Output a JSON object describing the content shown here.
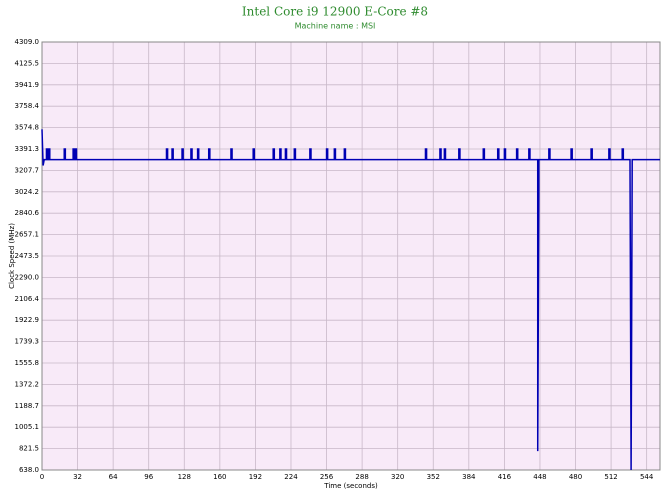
{
  "chart_data": {
    "type": "line",
    "title": "Intel Core i9 12900 E-Core #8",
    "subtitle": "Machine name : MSI",
    "xlabel": "Time (seconds)",
    "ylabel": "Clock Speed (MHz)",
    "color": "#0000b4",
    "grid": true,
    "xlim": [
      0,
      556
    ],
    "ylim": [
      638,
      4309
    ],
    "xticks": [
      0,
      32,
      64,
      96,
      128,
      160,
      192,
      224,
      256,
      288,
      320,
      352,
      384,
      416,
      448,
      480,
      512,
      544
    ],
    "yticks": [
      {
        "value": 638,
        "label": "638.0"
      },
      821.5,
      1005.1,
      1188.7,
      1372.2,
      1555.8,
      1739.3,
      1922.9,
      2106.4,
      {
        "value": 2290,
        "label": "2290.0"
      },
      2473.5,
      2657.1,
      2840.6,
      3024.2,
      3207.7,
      3391.3,
      3574.8,
      3758.4,
      3941.9,
      4125.5,
      {
        "value": 4309,
        "label": "4309.0"
      }
    ],
    "x": [
      0,
      1,
      2,
      4,
      4,
      5,
      5,
      6,
      6,
      7,
      7,
      20,
      20,
      21,
      21,
      28,
      28,
      29,
      29,
      30,
      30,
      31,
      31,
      112,
      112,
      113,
      113,
      117,
      117,
      118,
      118,
      126,
      126,
      127,
      127,
      134,
      134,
      135,
      135,
      140,
      140,
      141,
      141,
      150,
      150,
      151,
      151,
      170,
      170,
      171,
      171,
      190,
      190,
      191,
      191,
      208,
      208,
      209,
      209,
      214,
      214,
      215,
      215,
      219,
      219,
      220,
      220,
      227,
      227,
      228,
      228,
      241,
      241,
      242,
      242,
      256,
      256,
      257,
      257,
      263,
      263,
      264,
      264,
      272,
      272,
      273,
      273,
      345,
      345,
      346,
      346,
      358,
      358,
      359,
      359,
      362,
      362,
      363,
      363,
      375,
      375,
      376,
      376,
      397,
      397,
      398,
      398,
      410,
      410,
      411,
      411,
      416,
      416,
      417,
      417,
      427,
      427,
      428,
      428,
      438,
      438,
      439,
      439,
      446,
      446,
      447,
      447,
      456,
      456,
      457,
      457,
      476,
      476,
      477,
      477,
      494,
      494,
      495,
      495,
      510,
      510,
      511,
      511,
      522,
      522,
      523,
      523,
      529,
      530,
      530.5,
      531,
      556
    ],
    "values": [
      3560,
      3250,
      3300,
      3300,
      3391,
      3391,
      3300,
      3300,
      3391,
      3391,
      3300,
      3300,
      3391,
      3391,
      3300,
      3300,
      3391,
      3391,
      3300,
      3300,
      3391,
      3391,
      3300,
      3300,
      3391,
      3391,
      3300,
      3300,
      3391,
      3391,
      3300,
      3300,
      3391,
      3391,
      3300,
      3300,
      3391,
      3391,
      3300,
      3300,
      3391,
      3391,
      3300,
      3300,
      3391,
      3391,
      3300,
      3300,
      3391,
      3391,
      3300,
      3300,
      3391,
      3391,
      3300,
      3300,
      3391,
      3391,
      3300,
      3300,
      3391,
      3391,
      3300,
      3300,
      3391,
      3391,
      3300,
      3300,
      3391,
      3391,
      3300,
      3300,
      3391,
      3391,
      3300,
      3300,
      3391,
      3391,
      3300,
      3300,
      3391,
      3391,
      3300,
      3300,
      3391,
      3391,
      3300,
      3300,
      3391,
      3391,
      3300,
      3300,
      3391,
      3391,
      3300,
      3300,
      3391,
      3391,
      3300,
      3300,
      3391,
      3391,
      3300,
      3300,
      3391,
      3391,
      3300,
      3300,
      3391,
      3391,
      3300,
      3300,
      3391,
      3391,
      3300,
      3300,
      3391,
      3391,
      3300,
      3300,
      3391,
      3391,
      3300,
      3300,
      800,
      3050,
      3300,
      3300,
      3391,
      3391,
      3300,
      3300,
      3391,
      3391,
      3300,
      3300,
      3391,
      3391,
      3300,
      3300,
      3391,
      3391,
      3300,
      3300,
      3391,
      3391,
      3300,
      3300,
      638,
      1900,
      3300,
      3300
    ]
  }
}
